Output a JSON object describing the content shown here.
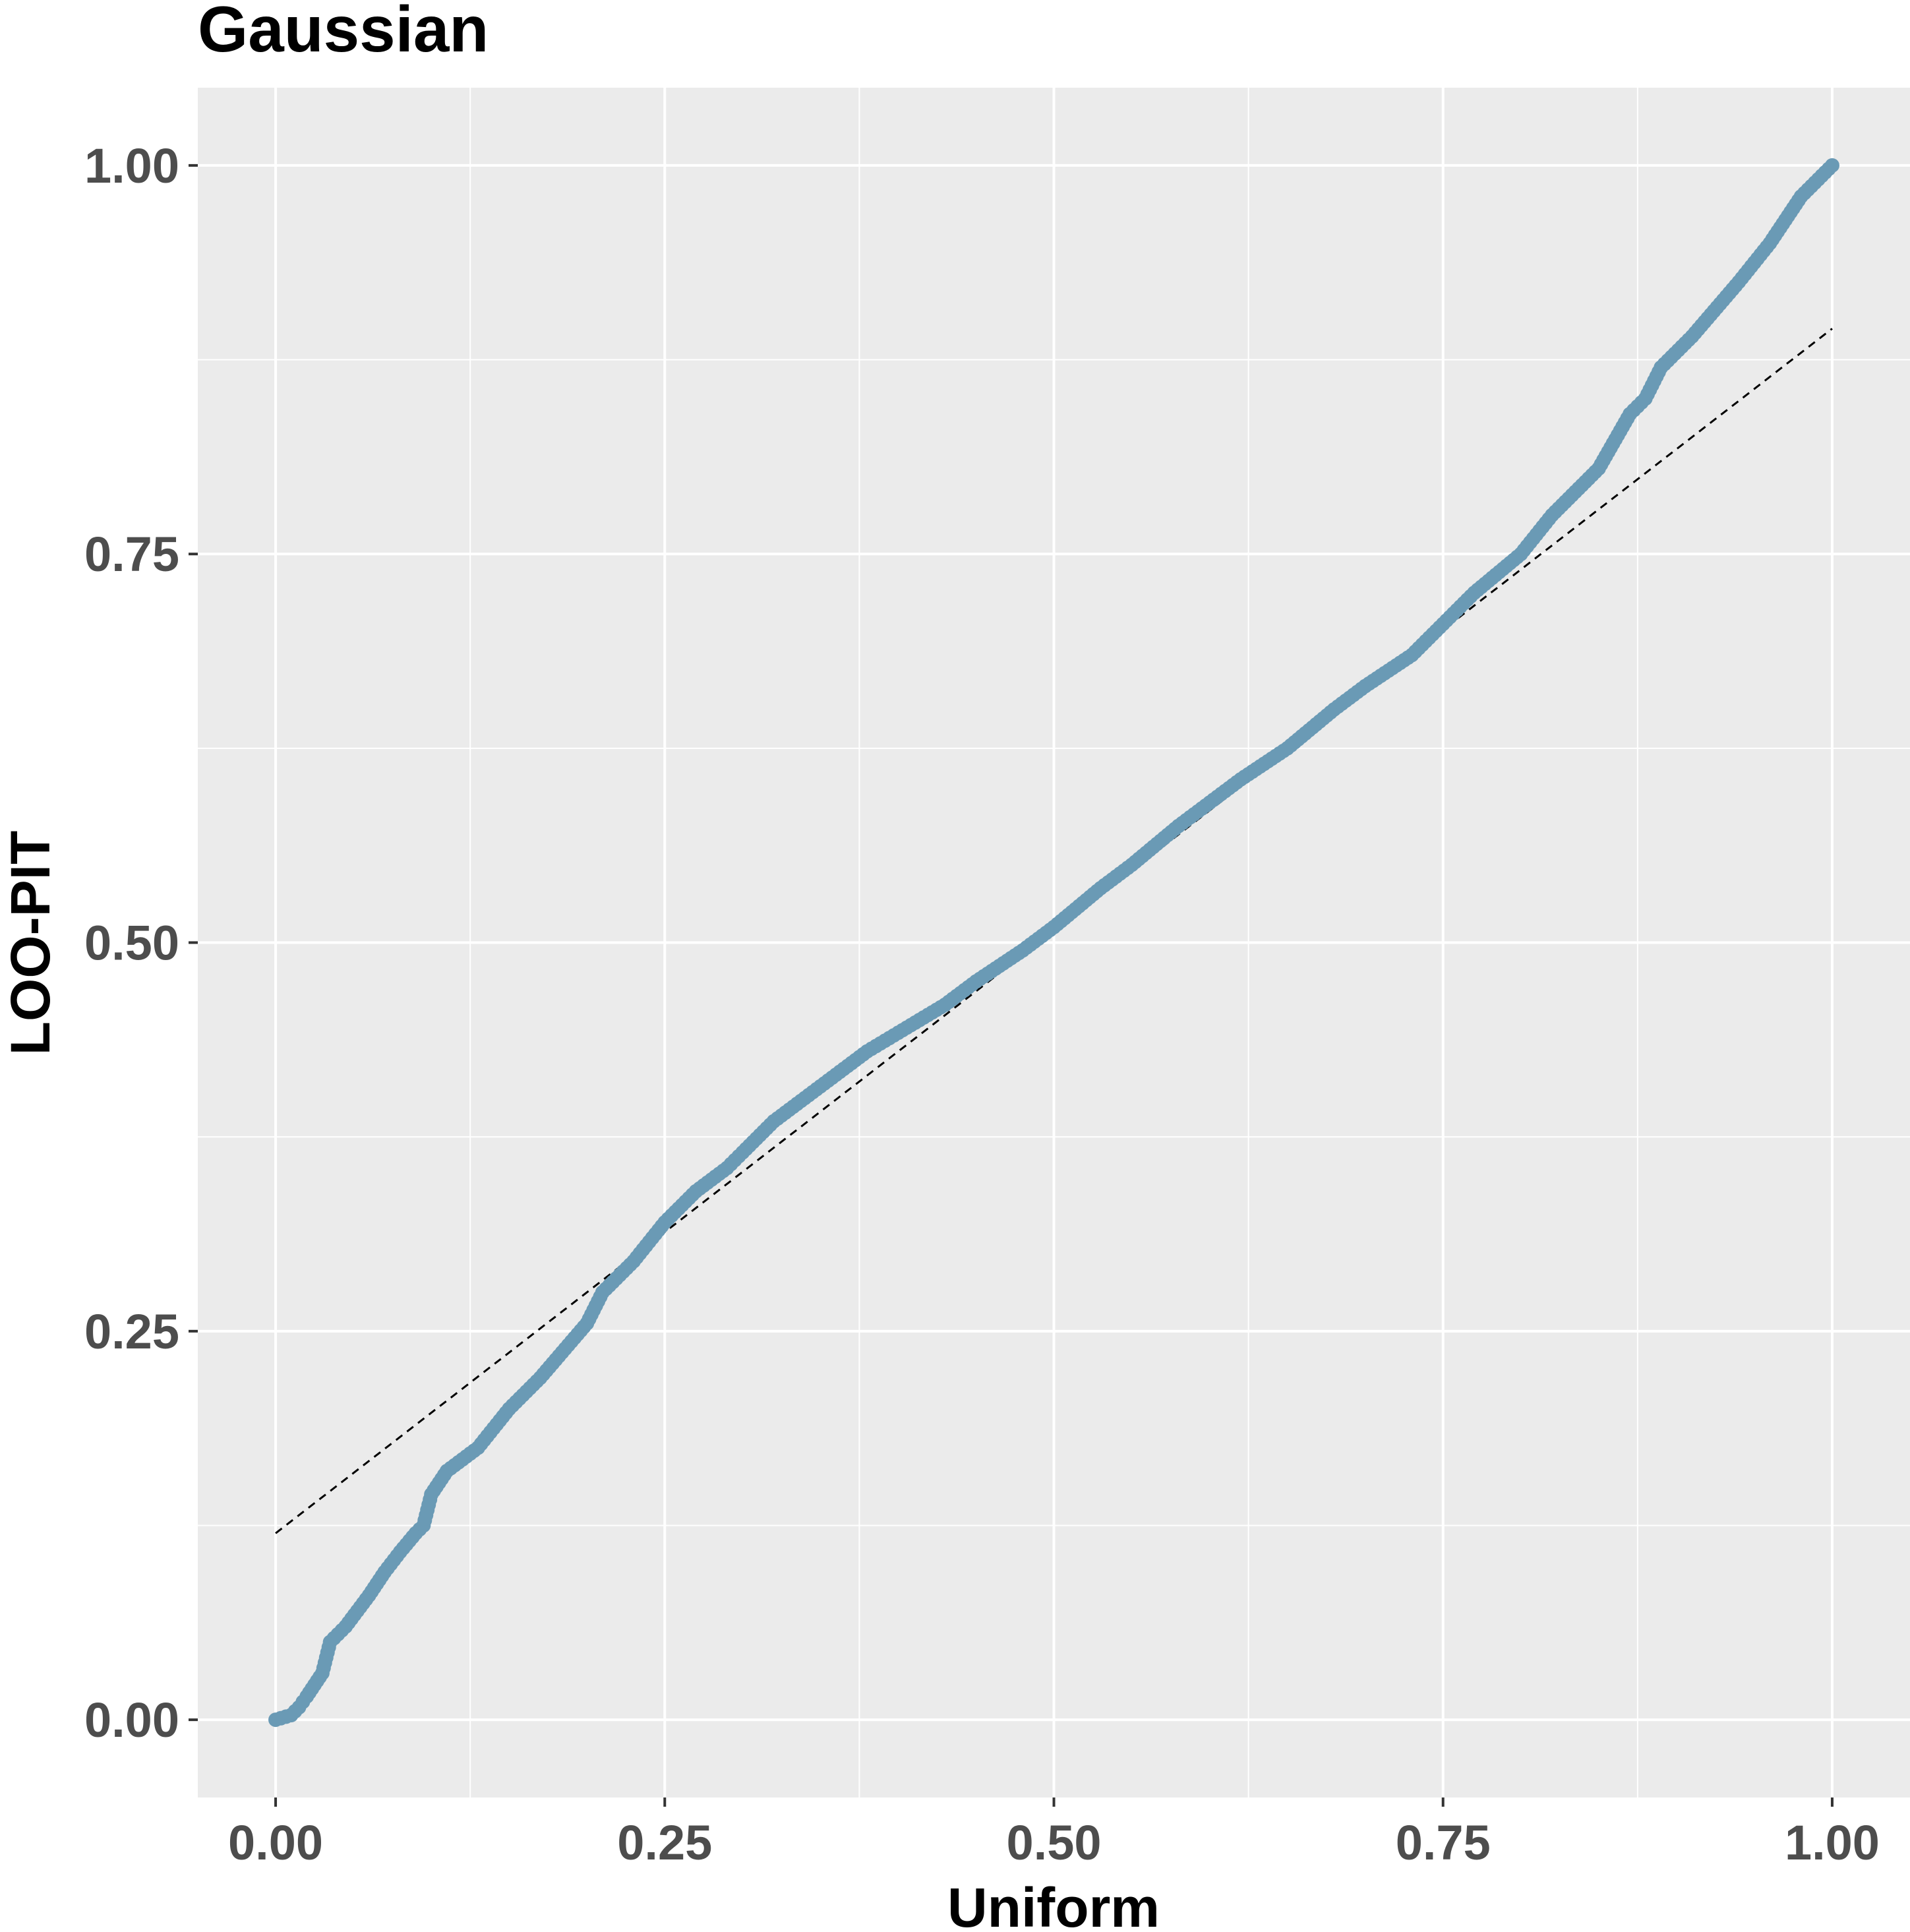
{
  "chart_data": {
    "type": "scatter",
    "title": "Gaussian",
    "xlabel": "Uniform",
    "ylabel": "LOO-PIT",
    "xlim": [
      -0.05,
      1.05
    ],
    "ylim": [
      -0.05,
      1.05
    ],
    "x_ticks": [
      "0.00",
      "0.25",
      "0.50",
      "0.75",
      "1.00"
    ],
    "y_ticks": [
      "0.00",
      "0.25",
      "0.50",
      "0.75",
      "1.00"
    ],
    "x_tick_values": [
      0,
      0.25,
      0.5,
      0.75,
      1.0
    ],
    "y_tick_values": [
      0,
      0.25,
      0.5,
      0.75,
      1.0
    ],
    "grid": true,
    "colors": {
      "panel_background": "#ebebeb",
      "grid_line": "#ffffff",
      "points": "#6a9ab5",
      "reference_line": "#000000",
      "tick_label": "#4d4d4d"
    },
    "reference_line": {
      "style": "dashed",
      "x": [
        0.0,
        1.0
      ],
      "y": [
        0.12,
        0.895
      ]
    },
    "series": [
      {
        "x": [
          0.0,
          0.01,
          0.015,
          0.02,
          0.03,
          0.035,
          0.04,
          0.045,
          0.06,
          0.07,
          0.08,
          0.09,
          0.095,
          0.1,
          0.11,
          0.13,
          0.15,
          0.17,
          0.2,
          0.21,
          0.23,
          0.25,
          0.27,
          0.29,
          0.3,
          0.32,
          0.34,
          0.36,
          0.38,
          0.4,
          0.43,
          0.45,
          0.48,
          0.5,
          0.53,
          0.55,
          0.58,
          0.6,
          0.62,
          0.65,
          0.68,
          0.7,
          0.73,
          0.75,
          0.77,
          0.8,
          0.82,
          0.85,
          0.87,
          0.88,
          0.89,
          0.91,
          0.94,
          0.96,
          0.98,
          1.0
        ],
        "y": [
          0.0,
          0.003,
          0.008,
          0.015,
          0.03,
          0.05,
          0.055,
          0.06,
          0.08,
          0.095,
          0.108,
          0.12,
          0.125,
          0.145,
          0.16,
          0.175,
          0.2,
          0.22,
          0.255,
          0.275,
          0.295,
          0.32,
          0.34,
          0.355,
          0.365,
          0.385,
          0.4,
          0.415,
          0.43,
          0.442,
          0.46,
          0.475,
          0.495,
          0.51,
          0.535,
          0.55,
          0.575,
          0.59,
          0.605,
          0.625,
          0.65,
          0.665,
          0.685,
          0.705,
          0.725,
          0.75,
          0.775,
          0.805,
          0.84,
          0.85,
          0.87,
          0.89,
          0.925,
          0.95,
          0.98,
          1.0
        ]
      }
    ]
  }
}
